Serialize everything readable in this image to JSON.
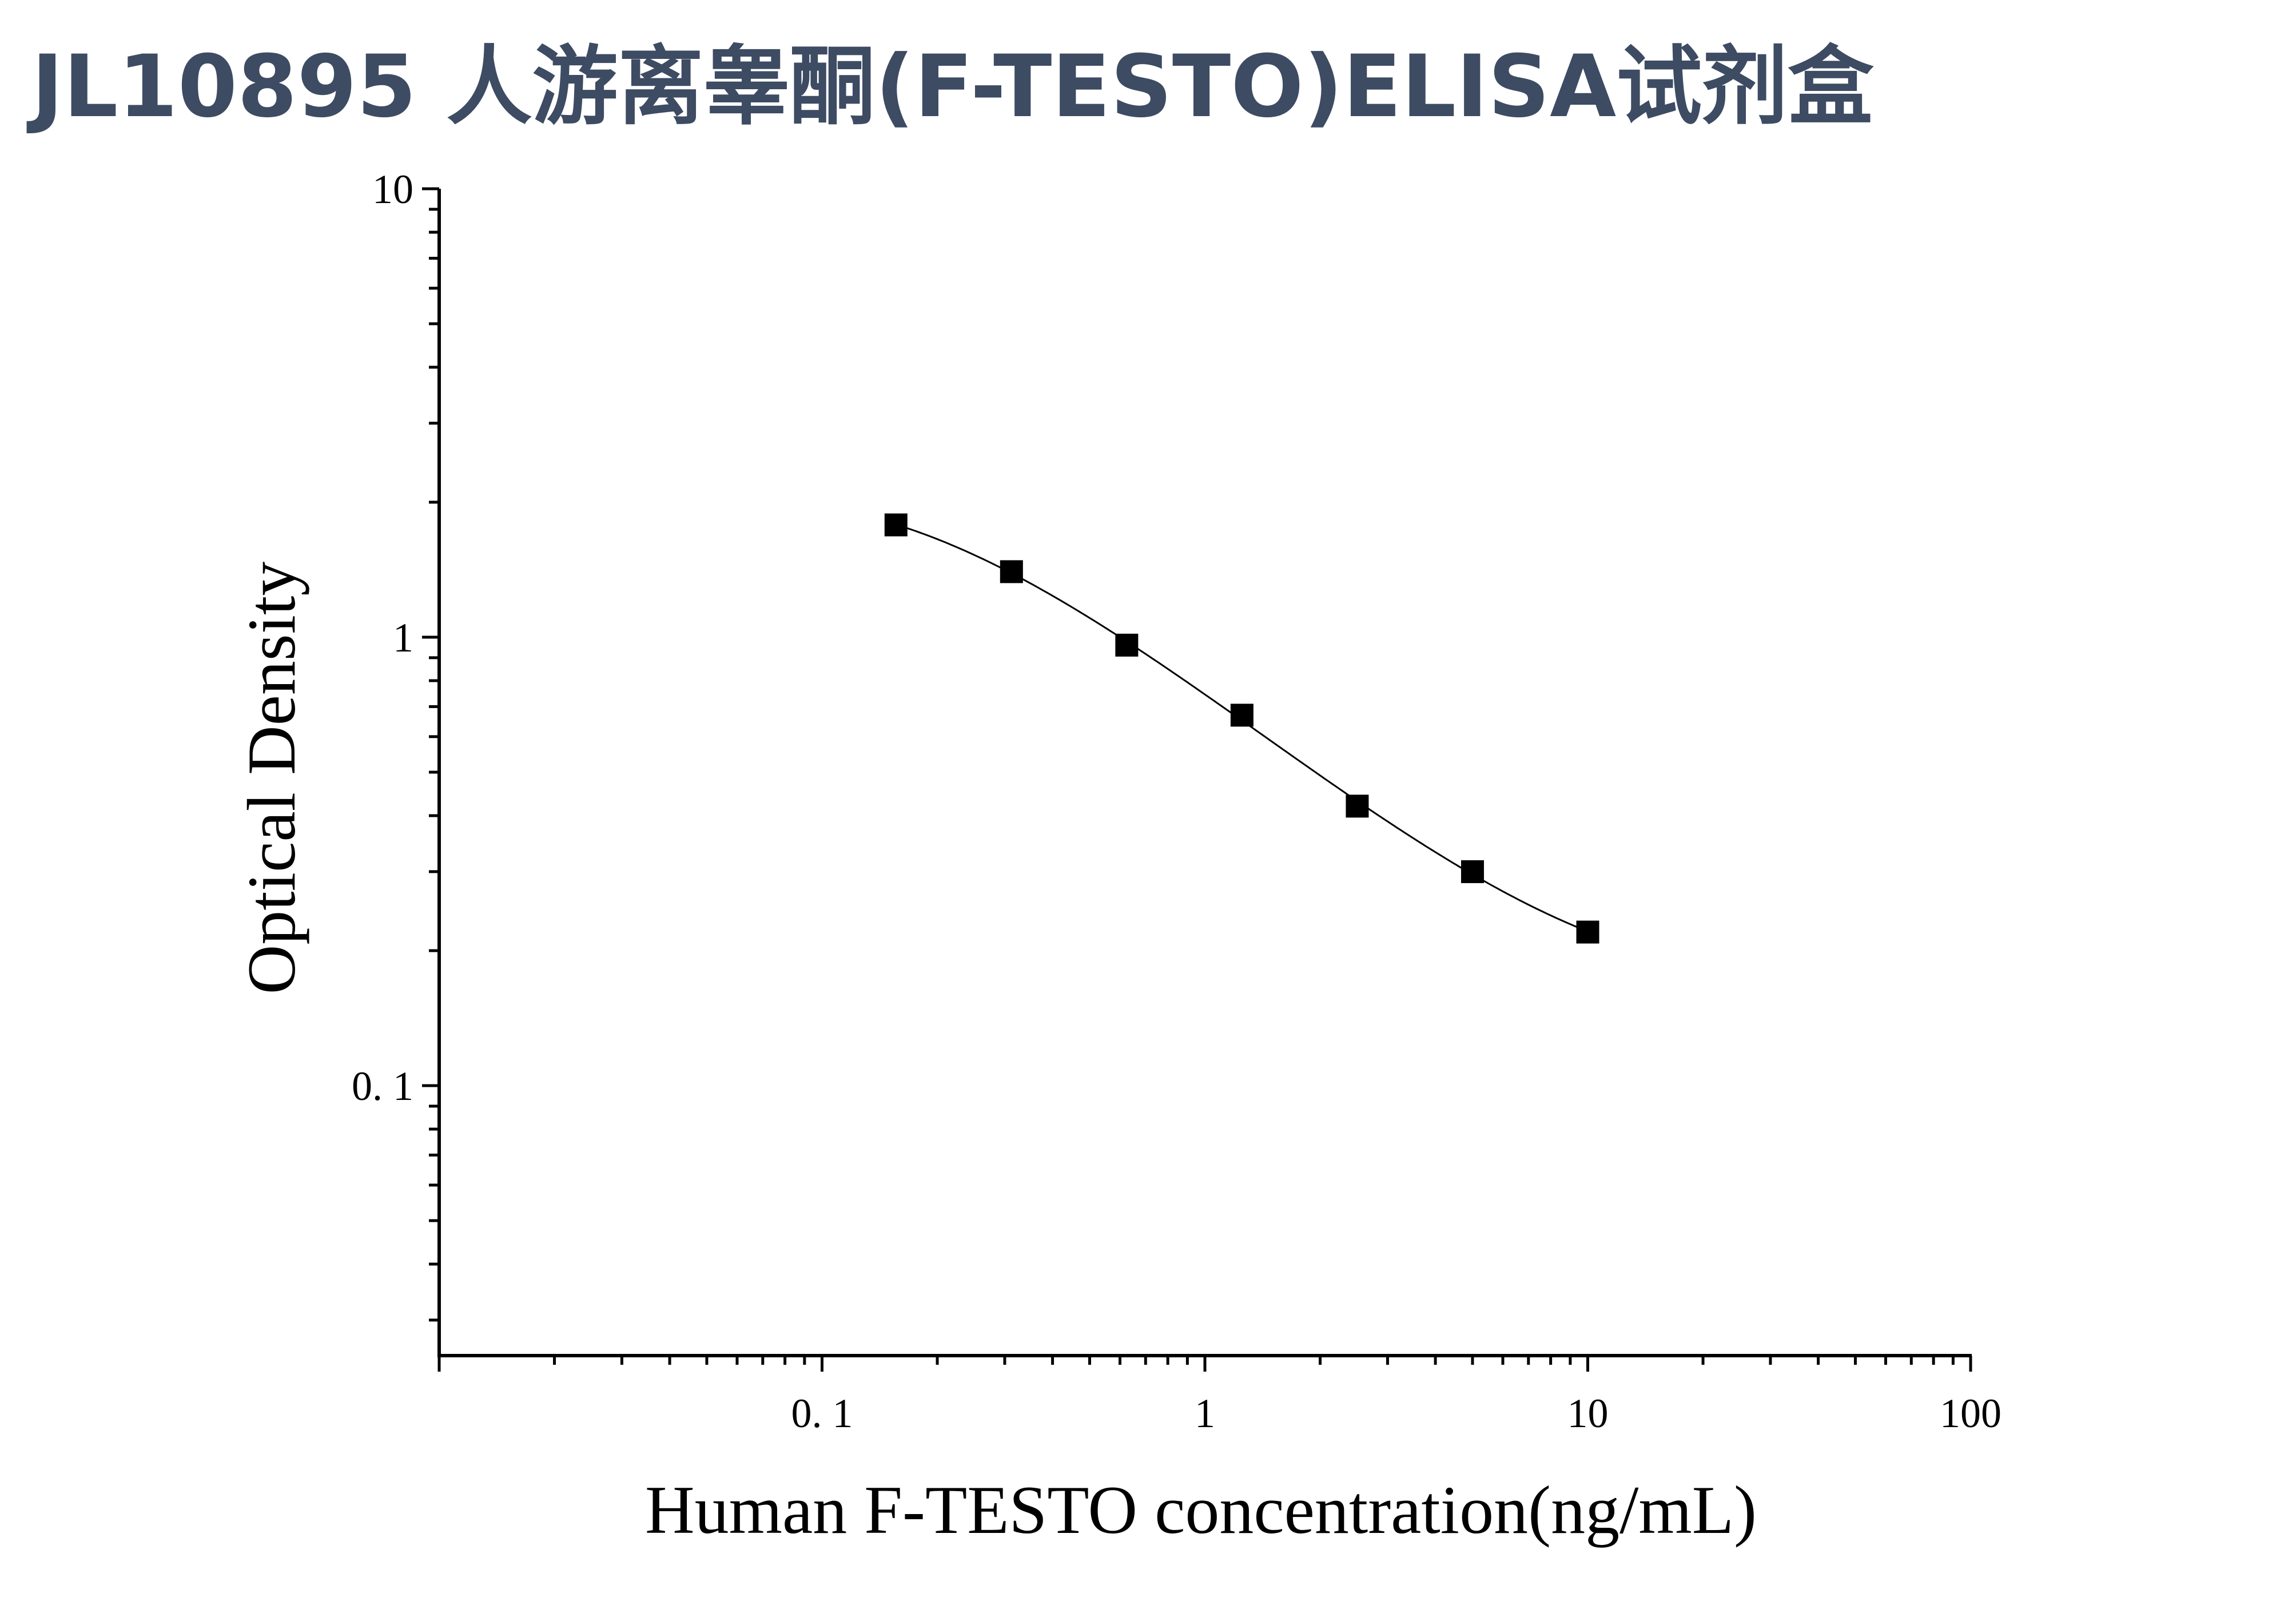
{
  "title": "JL10895 人游离睾酮(F-TESTO)ELISA试剂盒",
  "colors": {
    "title": "#3d4b63",
    "axis": "#000000",
    "marker": "#000000",
    "curve": "#000000"
  },
  "chart_data": {
    "type": "scatter",
    "title": "JL10895 人游离睾酮(F-TESTO)ELISA试剂盒",
    "xlabel": "Human F-TESTO concentration(ng/mL)",
    "ylabel": "Optical Density",
    "xscale": "log",
    "yscale": "log",
    "xlim": [
      0.01,
      100
    ],
    "ylim": [
      0.025,
      10
    ],
    "xticks": [
      {
        "value": 0.1,
        "label": "0. 1"
      },
      {
        "value": 1,
        "label": "1"
      },
      {
        "value": 10,
        "label": "10"
      },
      {
        "value": 100,
        "label": "100"
      }
    ],
    "yticks": [
      {
        "value": 0.1,
        "label": "0. 1"
      },
      {
        "value": 1,
        "label": "1"
      },
      {
        "value": 10,
        "label": "10"
      }
    ],
    "grid": false,
    "legend": "none",
    "marker": "square",
    "series": [
      {
        "x": [
          0.156,
          0.3125,
          0.625,
          1.25,
          2.5,
          5,
          10
        ],
        "y": [
          1.78,
          1.4,
          0.96,
          0.67,
          0.42,
          0.3,
          0.22
        ]
      }
    ],
    "fit_curve": "smooth line through points"
  }
}
